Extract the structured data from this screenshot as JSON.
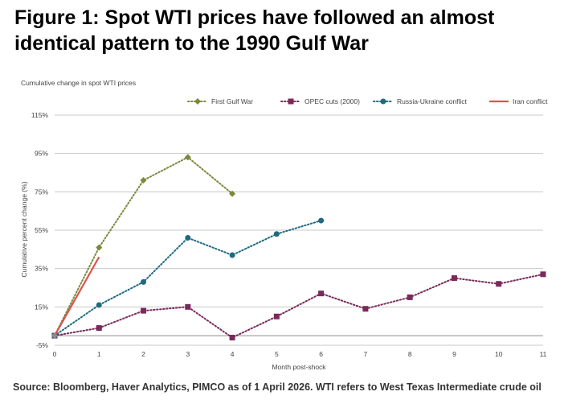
{
  "title": "Figure 1: Spot WTI prices have followed an almost identical pattern to the 1990 Gulf War",
  "source": "Source: Bloomberg, Haver Analytics, PIMCO as of 1 April 2026. WTI refers to West Texas Intermediate crude oil",
  "chart_data": {
    "type": "line",
    "subtitle": "Cumulative change in spot WTI prices",
    "xlabel": "Month post-shock",
    "ylabel": "Cumulative percent change (%)",
    "xlim": [
      0,
      11
    ],
    "ylim": [
      -5,
      115
    ],
    "y_ticks": [
      -5,
      15,
      35,
      55,
      75,
      95,
      115
    ],
    "y_tick_labels": [
      "-5%",
      "15%",
      "35%",
      "55%",
      "75%",
      "95%",
      "115%"
    ],
    "x_ticks": [
      0,
      1,
      2,
      3,
      4,
      5,
      6,
      7,
      8,
      9,
      10,
      11
    ],
    "grid": true,
    "legend_position": "top-right",
    "series": [
      {
        "name": "First Gulf War",
        "color": "#7a8a3a",
        "style": "dotted",
        "marker": "diamond",
        "x": [
          0,
          1,
          2,
          3,
          4
        ],
        "values": [
          0,
          46,
          81,
          93,
          74
        ]
      },
      {
        "name": "OPEC cuts (2000)",
        "color": "#7a2a5a",
        "style": "dotted",
        "marker": "square",
        "x": [
          0,
          1,
          2,
          3,
          4,
          5,
          6,
          7,
          8,
          9,
          10,
          11
        ],
        "values": [
          0,
          4,
          13,
          15,
          -1,
          10,
          22,
          14,
          20,
          30,
          27,
          32
        ]
      },
      {
        "name": "Russia-Ukraine conflict",
        "color": "#1f6a80",
        "style": "dotted",
        "marker": "circle",
        "x": [
          0,
          1,
          2,
          3,
          4,
          5,
          6
        ],
        "values": [
          0,
          16,
          28,
          51,
          42,
          53,
          60
        ]
      },
      {
        "name": "Iran conflict",
        "color": "#d9534f",
        "style": "solid",
        "marker": "none",
        "x": [
          0,
          1
        ],
        "values": [
          0,
          41
        ]
      }
    ]
  }
}
